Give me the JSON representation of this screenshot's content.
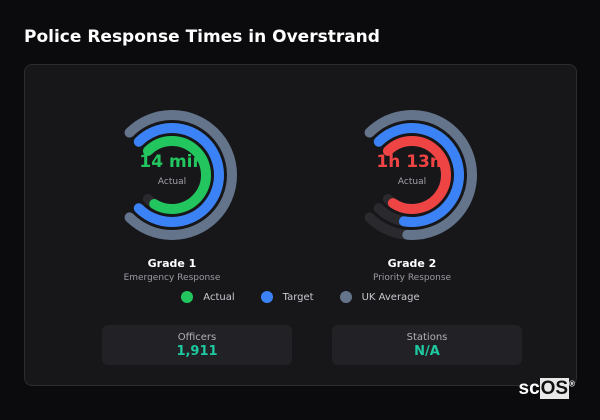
{
  "title": "Police Response Times in Overstrand",
  "colors": {
    "actual_grade1": "#22c55e",
    "actual_grade2": "#ef4444",
    "target": "#3b82f6",
    "uk_average": "#64748b",
    "track": "#2a2a2e",
    "stat_value": "#1ec8a0"
  },
  "gauges": [
    {
      "value": "14 min",
      "sublabel": "Actual",
      "label": "Grade 1",
      "description": "Emergency Response",
      "actual_fill": 0.95,
      "target_fill": 1.0,
      "uk_fill": 1.0,
      "actual_color": "#22c55e"
    },
    {
      "value": "1h 13m",
      "sublabel": "Actual",
      "label": "Grade 2",
      "description": "Priority Response",
      "actual_fill": 0.96,
      "target_fill": 0.87,
      "uk_fill": 0.85,
      "actual_color": "#ef4444"
    }
  ],
  "legend": [
    {
      "label": "Actual",
      "color": "#22c55e"
    },
    {
      "label": "Target",
      "color": "#3b82f6"
    },
    {
      "label": "UK Average",
      "color": "#64748b"
    }
  ],
  "stats": [
    {
      "label": "Officers",
      "value": "1,911"
    },
    {
      "label": "Stations",
      "value": "N/A"
    }
  ],
  "logo": "scOS"
}
